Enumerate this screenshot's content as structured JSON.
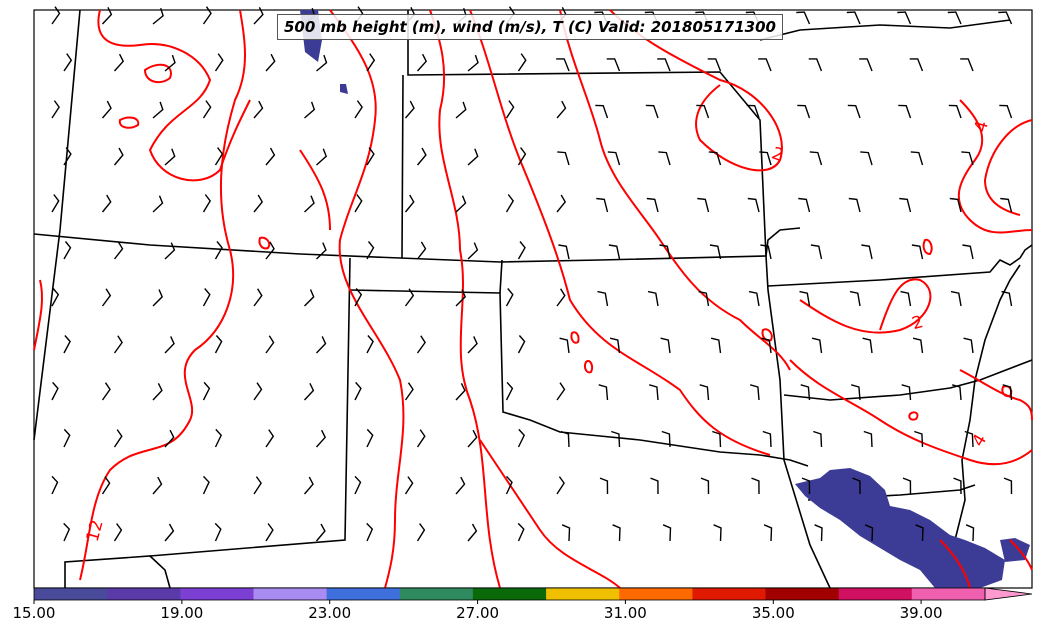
{
  "title": "500 mb height (m), wind (m/s), T (C) Valid: 201805171300",
  "temperature_contour_labels": [
    "12",
    "2",
    "2",
    "4",
    "4"
  ],
  "colorbar": {
    "tick_labels": [
      "15.00",
      "19.00",
      "23.00",
      "27.00",
      "31.00",
      "35.00",
      "39.00"
    ],
    "tick_values": [
      15,
      19,
      23,
      27,
      31,
      35,
      39
    ],
    "range": [
      15,
      42
    ],
    "colors": [
      "#4a4a9a",
      "#5a3aa8",
      "#7b3fd4",
      "#a98cf2",
      "#3f6fdc",
      "#2f8a5f",
      "#0a6a0a",
      "#f0c000",
      "#ff6a00",
      "#e01a00",
      "#a00000",
      "#d01060",
      "#f060b0",
      "#ff9ad0"
    ]
  },
  "colors": {
    "contour": "#ff0000",
    "border": "#000000",
    "shading": "#3c3c96"
  }
}
